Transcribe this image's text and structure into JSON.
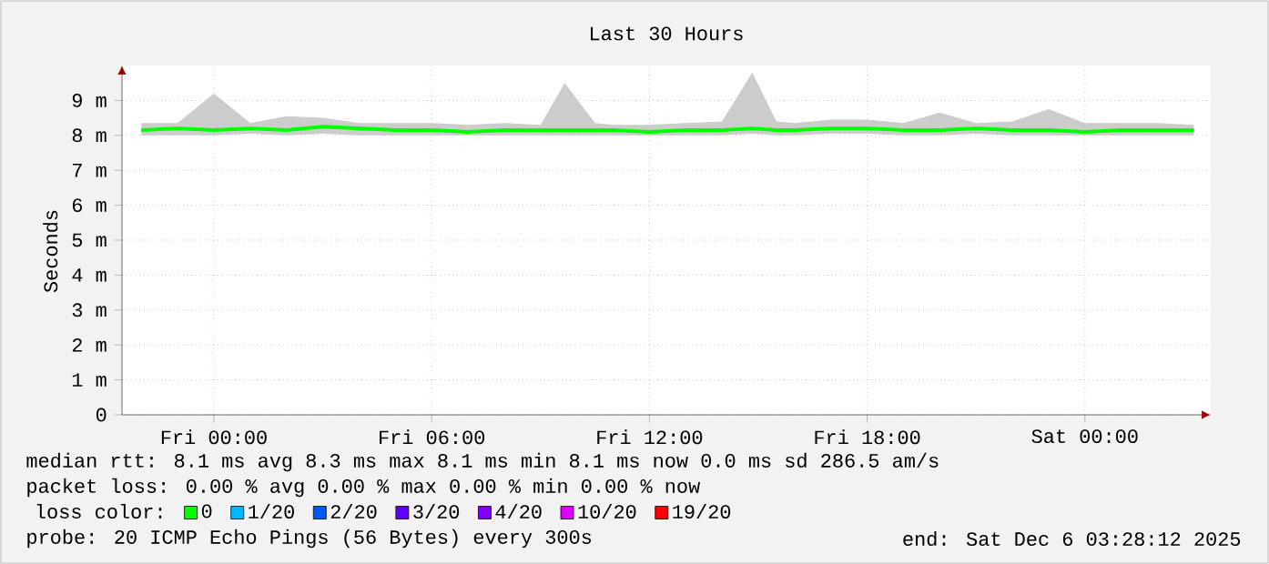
{
  "chart_data": {
    "type": "line",
    "title": "Last 30 Hours",
    "ylabel": "Seconds",
    "x": [
      "2025-12-04T22:00",
      "2025-12-04T23:00",
      "2025-12-05T00:00",
      "2025-12-05T01:00",
      "2025-12-05T02:00",
      "2025-12-05T03:00",
      "2025-12-05T04:00",
      "2025-12-05T05:00",
      "2025-12-05T06:00",
      "2025-12-05T07:00",
      "2025-12-05T08:00",
      "2025-12-05T09:00",
      "2025-12-05T09:40",
      "2025-12-05T10:30",
      "2025-12-05T11:00",
      "2025-12-05T12:00",
      "2025-12-05T13:00",
      "2025-12-05T14:00",
      "2025-12-05T14:50",
      "2025-12-05T15:30",
      "2025-12-05T16:00",
      "2025-12-05T17:00",
      "2025-12-05T18:00",
      "2025-12-05T19:00",
      "2025-12-05T20:00",
      "2025-12-05T21:00",
      "2025-12-05T22:00",
      "2025-12-05T23:00",
      "2025-12-06T00:00",
      "2025-12-06T01:00",
      "2025-12-06T02:00",
      "2025-12-06T03:00"
    ],
    "xlim": [
      "2025-12-04T21:28",
      "2025-12-06T03:28"
    ],
    "xticks": [
      {
        "value": "2025-12-05T00:00",
        "label": "Fri 00:00"
      },
      {
        "value": "2025-12-05T06:00",
        "label": "Fri 06:00"
      },
      {
        "value": "2025-12-05T12:00",
        "label": "Fri 12:00"
      },
      {
        "value": "2025-12-05T18:00",
        "label": "Fri 18:00"
      },
      {
        "value": "2025-12-06T00:00",
        "label": "Sat 00:00"
      }
    ],
    "ylim": [
      0,
      10
    ],
    "yticks": [
      0,
      {
        "value": 1,
        "label": "1 m"
      },
      {
        "value": 2,
        "label": "2 m"
      },
      {
        "value": 3,
        "label": "3 m"
      },
      {
        "value": 4,
        "label": "4 m"
      },
      {
        "value": 5,
        "label": "5 m"
      },
      {
        "value": 6,
        "label": "6 m"
      },
      {
        "value": 7,
        "label": "7 m"
      },
      {
        "value": 8,
        "label": "8 m"
      },
      {
        "value": 9,
        "label": "9 m"
      }
    ],
    "grid": true,
    "legend": "bottom",
    "legend_title": "loss color:",
    "series": [
      {
        "name": "0",
        "color": "#00ff00",
        "values": [
          8.15,
          8.2,
          8.15,
          8.2,
          8.15,
          8.25,
          8.2,
          8.15,
          8.15,
          8.1,
          8.15,
          8.15,
          8.15,
          8.15,
          8.15,
          8.1,
          8.15,
          8.15,
          8.2,
          8.15,
          8.15,
          8.2,
          8.2,
          8.15,
          8.15,
          8.2,
          8.15,
          8.15,
          8.1,
          8.15,
          8.15,
          8.15
        ],
        "lower": [
          8.0,
          8.0,
          8.0,
          8.05,
          8.0,
          8.05,
          8.0,
          8.0,
          8.0,
          8.0,
          8.0,
          8.0,
          8.0,
          8.0,
          8.0,
          8.0,
          8.0,
          8.0,
          8.05,
          8.0,
          8.0,
          8.05,
          8.05,
          8.0,
          8.0,
          8.05,
          8.0,
          8.0,
          8.0,
          8.0,
          8.0,
          8.0
        ],
        "upper": [
          8.35,
          8.35,
          9.2,
          8.35,
          8.55,
          8.5,
          8.35,
          8.35,
          8.35,
          8.3,
          8.35,
          8.3,
          9.5,
          8.35,
          8.3,
          8.3,
          8.35,
          8.4,
          9.8,
          8.4,
          8.35,
          8.45,
          8.45,
          8.35,
          8.65,
          8.35,
          8.4,
          8.75,
          8.35,
          8.35,
          8.35,
          8.3
        ]
      },
      {
        "name": "1/20",
        "color": "#00b8ff",
        "values": [
          null,
          null,
          null,
          null,
          null,
          null,
          null,
          null,
          null,
          null,
          null,
          null,
          null,
          null,
          null,
          null,
          null,
          null,
          null,
          null,
          null,
          null,
          null,
          null,
          null,
          null,
          null,
          null,
          null,
          null,
          null,
          null
        ]
      },
      {
        "name": "2/20",
        "color": "#0059ff",
        "values": [
          null,
          null,
          null,
          null,
          null,
          null,
          null,
          null,
          null,
          null,
          null,
          null,
          null,
          null,
          null,
          null,
          null,
          null,
          null,
          null,
          null,
          null,
          null,
          null,
          null,
          null,
          null,
          null,
          null,
          null,
          null,
          null
        ]
      },
      {
        "name": "3/20",
        "color": "#5e00ff",
        "values": [
          null,
          null,
          null,
          null,
          null,
          null,
          null,
          null,
          null,
          null,
          null,
          null,
          null,
          null,
          null,
          null,
          null,
          null,
          null,
          null,
          null,
          null,
          null,
          null,
          null,
          null,
          null,
          null,
          null,
          null,
          null,
          null
        ]
      },
      {
        "name": "4/20",
        "color": "#7e00ff",
        "values": [
          null,
          null,
          null,
          null,
          null,
          null,
          null,
          null,
          null,
          null,
          null,
          null,
          null,
          null,
          null,
          null,
          null,
          null,
          null,
          null,
          null,
          null,
          null,
          null,
          null,
          null,
          null,
          null,
          null,
          null,
          null,
          null
        ]
      },
      {
        "name": "10/20",
        "color": "#dd00ff",
        "values": [
          null,
          null,
          null,
          null,
          null,
          null,
          null,
          null,
          null,
          null,
          null,
          null,
          null,
          null,
          null,
          null,
          null,
          null,
          null,
          null,
          null,
          null,
          null,
          null,
          null,
          null,
          null,
          null,
          null,
          null,
          null,
          null
        ]
      },
      {
        "name": "19/20",
        "color": "#ff0000",
        "values": [
          null,
          null,
          null,
          null,
          null,
          null,
          null,
          null,
          null,
          null,
          null,
          null,
          null,
          null,
          null,
          null,
          null,
          null,
          null,
          null,
          null,
          null,
          null,
          null,
          null,
          null,
          null,
          null,
          null,
          null,
          null,
          null
        ]
      }
    ],
    "annotations": [
      "median rtt:  8.1 ms avg  8.3 ms max  8.1 ms min  8.1 ms now  0.0 ms sd  286.5   am/s",
      "packet loss: 0.00 % avg  0.00 % max  0.00 % min  0.00 % now",
      "probe:       20 ICMP Echo Pings (56 Bytes) every 300s",
      "end: Sat Dec  6 03:28:12 2025"
    ]
  }
}
